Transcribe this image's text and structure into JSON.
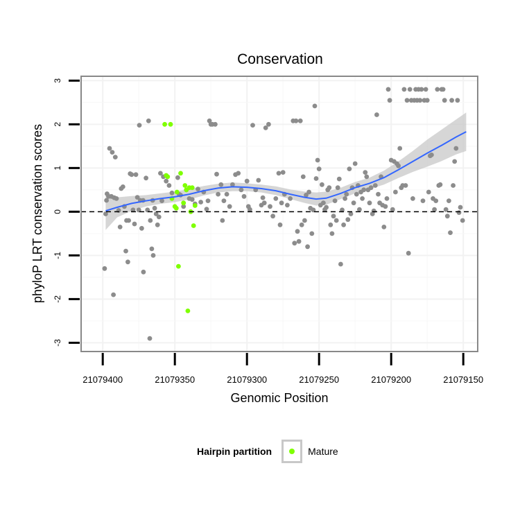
{
  "chart_data": {
    "type": "scatter",
    "title": "Conservation",
    "xlabel": "Genomic Position",
    "ylabel": "phyloP LRT conservation scores",
    "x_reversed": true,
    "xlim": [
      21079415,
      21079140
    ],
    "ylim": [
      -3.2,
      3.1
    ],
    "x_ticks": [
      21079400,
      21079350,
      21079300,
      21079250,
      21079200,
      21079150
    ],
    "x_tick_labels": [
      "21079400",
      "21079350",
      "21079300",
      "21079250",
      "21079200",
      "21079150"
    ],
    "y_ticks": [
      -3,
      -2,
      -1,
      0,
      1,
      2,
      3
    ],
    "y_tick_labels": [
      "-3",
      "-2",
      "-1",
      "0",
      "1",
      "2",
      "3"
    ],
    "reference_line": {
      "y": 0,
      "style": "dashed"
    },
    "grid": true,
    "legend": {
      "title": "Hairpin partition",
      "position": "bottom",
      "entries": [
        {
          "label": "Mature",
          "color": "#7fff00"
        }
      ]
    },
    "series": [
      {
        "color": "#8c8c8c",
        "points": [
          [
            21079398.7,
            -1.3
          ],
          [
            21079398,
            -0.05
          ],
          [
            21079397.4,
            0.26
          ],
          [
            21079397,
            0.41
          ],
          [
            21079396,
            0.35
          ],
          [
            21079395.3,
            1.45
          ],
          [
            21079394,
            0.35
          ],
          [
            21079393.4,
            1.36
          ],
          [
            21079392.6,
            -1.9
          ],
          [
            21079392,
            0.32
          ],
          [
            21079391.3,
            1.25
          ],
          [
            21079390.5,
            0.3
          ],
          [
            21079389,
            0.03
          ],
          [
            21079388,
            -0.35
          ],
          [
            21079387.2,
            0.53
          ],
          [
            21079386,
            0.57
          ],
          [
            21079385,
            0.12
          ],
          [
            21079384,
            -0.9
          ],
          [
            21079383.5,
            -0.2
          ],
          [
            21079382.6,
            -1.15
          ],
          [
            21079382,
            -0.2
          ],
          [
            21079381,
            0.87
          ],
          [
            21079380,
            0.85
          ],
          [
            21079379,
            0.04
          ],
          [
            21079378,
            -0.28
          ],
          [
            21079377,
            0.85
          ],
          [
            21079376,
            0.33
          ],
          [
            21079375,
            0.04
          ],
          [
            21079374.6,
            1.98
          ],
          [
            21079374,
            0.26
          ],
          [
            21079373,
            -0.38
          ],
          [
            21079372,
            0.26
          ],
          [
            21079371.8,
            -1.38
          ],
          [
            21079370,
            0.77
          ],
          [
            21079369,
            0.04
          ],
          [
            21079368.2,
            2.08
          ],
          [
            21079367.4,
            -2.9
          ],
          [
            21079367,
            -0.2
          ],
          [
            21079366,
            -0.85
          ],
          [
            21079365.4,
            0.26
          ],
          [
            21079365,
            -1.0
          ],
          [
            21079364,
            0.08
          ],
          [
            21079363,
            -0.05
          ],
          [
            21079362,
            -0.3
          ],
          [
            21079361,
            -0.12
          ],
          [
            21079360,
            0.88
          ],
          [
            21079359,
            0.25
          ],
          [
            21079358,
            0.8
          ],
          [
            21079356,
            0.7
          ],
          [
            21079354,
            0.6
          ],
          [
            21079352,
            0.43
          ],
          [
            21079348,
            0.78
          ],
          [
            21079347,
            0.4
          ],
          [
            21079346,
            0.38
          ],
          [
            21079344,
            0.12
          ],
          [
            21079342,
            0.5
          ],
          [
            21079340,
            0.3
          ],
          [
            21079338,
            0.28
          ],
          [
            21079336,
            0.18
          ],
          [
            21079334,
            0.52
          ],
          [
            21079332,
            0.22
          ],
          [
            21079330,
            0.45
          ],
          [
            21079328,
            0.06
          ],
          [
            21079327,
            0.25
          ],
          [
            21079326,
            2.08
          ],
          [
            21079325,
            2.0
          ],
          [
            21079324,
            2.0
          ],
          [
            21079322,
            2.0
          ],
          [
            21079321,
            0.86
          ],
          [
            21079320,
            0.4
          ],
          [
            21079318,
            0.62
          ],
          [
            21079317,
            -0.2
          ],
          [
            21079316,
            0.25
          ],
          [
            21079314,
            0.4
          ],
          [
            21079312,
            0.12
          ],
          [
            21079310,
            0.62
          ],
          [
            21079308,
            0.85
          ],
          [
            21079306,
            0.88
          ],
          [
            21079304,
            0.5
          ],
          [
            21079302,
            0.35
          ],
          [
            21079300,
            0.7
          ],
          [
            21079299,
            0.12
          ],
          [
            21079298,
            0.05
          ],
          [
            21079296,
            1.98
          ],
          [
            21079294,
            0.5
          ],
          [
            21079292,
            0.72
          ],
          [
            21079290,
            0.15
          ],
          [
            21079289,
            0.32
          ],
          [
            21079288,
            0.2
          ],
          [
            21079287,
            1.92
          ],
          [
            21079285,
            2.0
          ],
          [
            21079284,
            0.12
          ],
          [
            21079282,
            -0.1
          ],
          [
            21079280,
            0.3
          ],
          [
            21079278,
            0.88
          ],
          [
            21079277,
            -0.3
          ],
          [
            21079276,
            0.2
          ],
          [
            21079275,
            0.9
          ],
          [
            21079274,
            0.4
          ],
          [
            21079272,
            0.15
          ],
          [
            21079270,
            0.3
          ],
          [
            21079268,
            2.08
          ],
          [
            21079267,
            -0.72
          ],
          [
            21079266,
            2.08
          ],
          [
            21079265,
            -0.45
          ],
          [
            21079264,
            -0.68
          ],
          [
            21079263,
            2.08
          ],
          [
            21079262,
            -0.3
          ],
          [
            21079261,
            0.8
          ],
          [
            21079260,
            -0.2
          ],
          [
            21079259,
            0.38
          ],
          [
            21079258,
            -0.8
          ],
          [
            21079257,
            0.45
          ],
          [
            21079256,
            0.08
          ],
          [
            21079255,
            -0.5
          ],
          [
            21079254,
            0.04
          ],
          [
            21079253,
            2.42
          ],
          [
            21079252,
            0.76
          ],
          [
            21079251,
            1.18
          ],
          [
            21079250,
            0.98
          ],
          [
            21079249,
            0.15
          ],
          [
            21079248,
            0.62
          ],
          [
            21079247,
            0.2
          ],
          [
            21079246,
            0.05
          ],
          [
            21079245,
            0.1
          ],
          [
            21079244,
            0.5
          ],
          [
            21079243,
            0.55
          ],
          [
            21079242,
            -0.3
          ],
          [
            21079241,
            -0.5
          ],
          [
            21079240,
            -0.1
          ],
          [
            21079239,
            0.25
          ],
          [
            21079238,
            -0.2
          ],
          [
            21079237,
            0.55
          ],
          [
            21079236,
            0.75
          ],
          [
            21079235,
            -1.2
          ],
          [
            21079234,
            0.04
          ],
          [
            21079233,
            -0.3
          ],
          [
            21079232,
            0.3
          ],
          [
            21079231,
            0.4
          ],
          [
            21079230,
            -0.18
          ],
          [
            21079229,
            0.98
          ],
          [
            21079228,
            -0.05
          ],
          [
            21079227,
            0.55
          ],
          [
            21079226,
            0.2
          ],
          [
            21079225,
            1.1
          ],
          [
            21079224,
            0.4
          ],
          [
            21079223,
            0.6
          ],
          [
            21079222,
            0.05
          ],
          [
            21079221,
            0.45
          ],
          [
            21079220,
            0.3
          ],
          [
            21079219,
            0.5
          ],
          [
            21079218,
            0.9
          ],
          [
            21079217,
            0.8
          ],
          [
            21079216,
            0.5
          ],
          [
            21079215,
            0.2
          ],
          [
            21079214,
            0.55
          ],
          [
            21079213,
            -0.05
          ],
          [
            21079212,
            0.02
          ],
          [
            21079211,
            0.6
          ],
          [
            21079210,
            2.22
          ],
          [
            21079209,
            0.4
          ],
          [
            21079208,
            0.2
          ],
          [
            21079207,
            0.8
          ],
          [
            21079206,
            0.15
          ],
          [
            21079205,
            -0.35
          ],
          [
            21079204,
            0.12
          ],
          [
            21079203,
            0.3
          ],
          [
            21079202,
            2.8
          ],
          [
            21079201,
            2.55
          ],
          [
            21079200,
            1.18
          ],
          [
            21079199,
            0.05
          ],
          [
            21079198,
            1.15
          ],
          [
            21079197,
            0.45
          ],
          [
            21079196,
            1.1
          ],
          [
            21079195,
            1.05
          ],
          [
            21079194,
            1.45
          ],
          [
            21079193,
            0.55
          ],
          [
            21079192,
            0.6
          ],
          [
            21079191,
            2.8
          ],
          [
            21079190,
            0.6
          ],
          [
            21079189,
            2.55
          ],
          [
            21079188,
            -0.95
          ],
          [
            21079187,
            2.8
          ],
          [
            21079186,
            2.55
          ],
          [
            21079185,
            0.3
          ],
          [
            21079184,
            2.55
          ],
          [
            21079183,
            2.8
          ],
          [
            21079182,
            2.55
          ],
          [
            21079181,
            2.8
          ],
          [
            21079180,
            2.55
          ],
          [
            21079179,
            2.8
          ],
          [
            21079178,
            0.25
          ],
          [
            21079177,
            2.55
          ],
          [
            21079176,
            2.8
          ],
          [
            21079175,
            2.55
          ],
          [
            21079174,
            0.45
          ],
          [
            21079173,
            1.28
          ],
          [
            21079172,
            1.3
          ],
          [
            21079171,
            0.3
          ],
          [
            21079170,
            0.05
          ],
          [
            21079169,
            0.25
          ],
          [
            21079168,
            2.8
          ],
          [
            21079167,
            0.6
          ],
          [
            21079166,
            0.62
          ],
          [
            21079165,
            2.8
          ],
          [
            21079164,
            2.8
          ],
          [
            21079163,
            2.55
          ],
          [
            21079162,
            0.05
          ],
          [
            21079161,
            -0.1
          ],
          [
            21079160,
            0.25
          ],
          [
            21079159,
            -0.48
          ],
          [
            21079158,
            2.55
          ],
          [
            21079157,
            0.6
          ],
          [
            21079156,
            1.15
          ],
          [
            21079155,
            1.45
          ],
          [
            21079154,
            2.55
          ],
          [
            21079153,
            -0.02
          ],
          [
            21079152,
            0.1
          ],
          [
            21079150.5,
            -0.2
          ]
        ]
      },
      {
        "name": "Mature",
        "color": "#7fff00",
        "points": [
          [
            21079357,
            2.0
          ],
          [
            21079356,
            0.83
          ],
          [
            21079355,
            0.8
          ],
          [
            21079353,
            2.0
          ],
          [
            21079352,
            0.3
          ],
          [
            21079350,
            0.12
          ],
          [
            21079349,
            0.08
          ],
          [
            21079348.5,
            0.45
          ],
          [
            21079347.5,
            -1.25
          ],
          [
            21079346,
            0.88
          ],
          [
            21079344,
            0.2
          ],
          [
            21079343,
            0.6
          ],
          [
            21079342,
            0.5
          ],
          [
            21079341,
            -2.27
          ],
          [
            21079340,
            0.55
          ],
          [
            21079339,
            0.0
          ],
          [
            21079338,
            0.55
          ],
          [
            21079337,
            -0.32
          ],
          [
            21079336,
            0.14
          ]
        ]
      }
    ],
    "smooth": {
      "color": "#3366ff",
      "band_color": "#c8c8c8",
      "x": [
        21079398,
        21079390,
        21079380,
        21079370,
        21079360,
        21079350,
        21079340,
        21079330,
        21079320,
        21079310,
        21079300,
        21079290,
        21079280,
        21079270,
        21079260,
        21079252,
        21079245,
        21079235,
        21079225,
        21079215,
        21079205,
        21079195,
        21079185,
        21079175,
        21079165,
        21079155,
        21079148
      ],
      "y": [
        0.02,
        0.1,
        0.19,
        0.25,
        0.3,
        0.34,
        0.4,
        0.48,
        0.54,
        0.57,
        0.56,
        0.53,
        0.48,
        0.4,
        0.33,
        0.29,
        0.31,
        0.42,
        0.55,
        0.65,
        0.78,
        0.96,
        1.15,
        1.34,
        1.52,
        1.71,
        1.83
      ],
      "lower": [
        -0.42,
        -0.13,
        0.02,
        0.12,
        0.18,
        0.22,
        0.28,
        0.37,
        0.44,
        0.47,
        0.47,
        0.44,
        0.38,
        0.29,
        0.2,
        0.14,
        0.16,
        0.29,
        0.42,
        0.52,
        0.62,
        0.77,
        0.91,
        1.03,
        1.16,
        1.31,
        1.39
      ],
      "upper": [
        0.46,
        0.33,
        0.36,
        0.38,
        0.42,
        0.46,
        0.52,
        0.59,
        0.64,
        0.67,
        0.65,
        0.62,
        0.58,
        0.51,
        0.46,
        0.44,
        0.46,
        0.55,
        0.68,
        0.78,
        0.94,
        1.15,
        1.39,
        1.65,
        1.88,
        2.11,
        2.27
      ]
    }
  }
}
